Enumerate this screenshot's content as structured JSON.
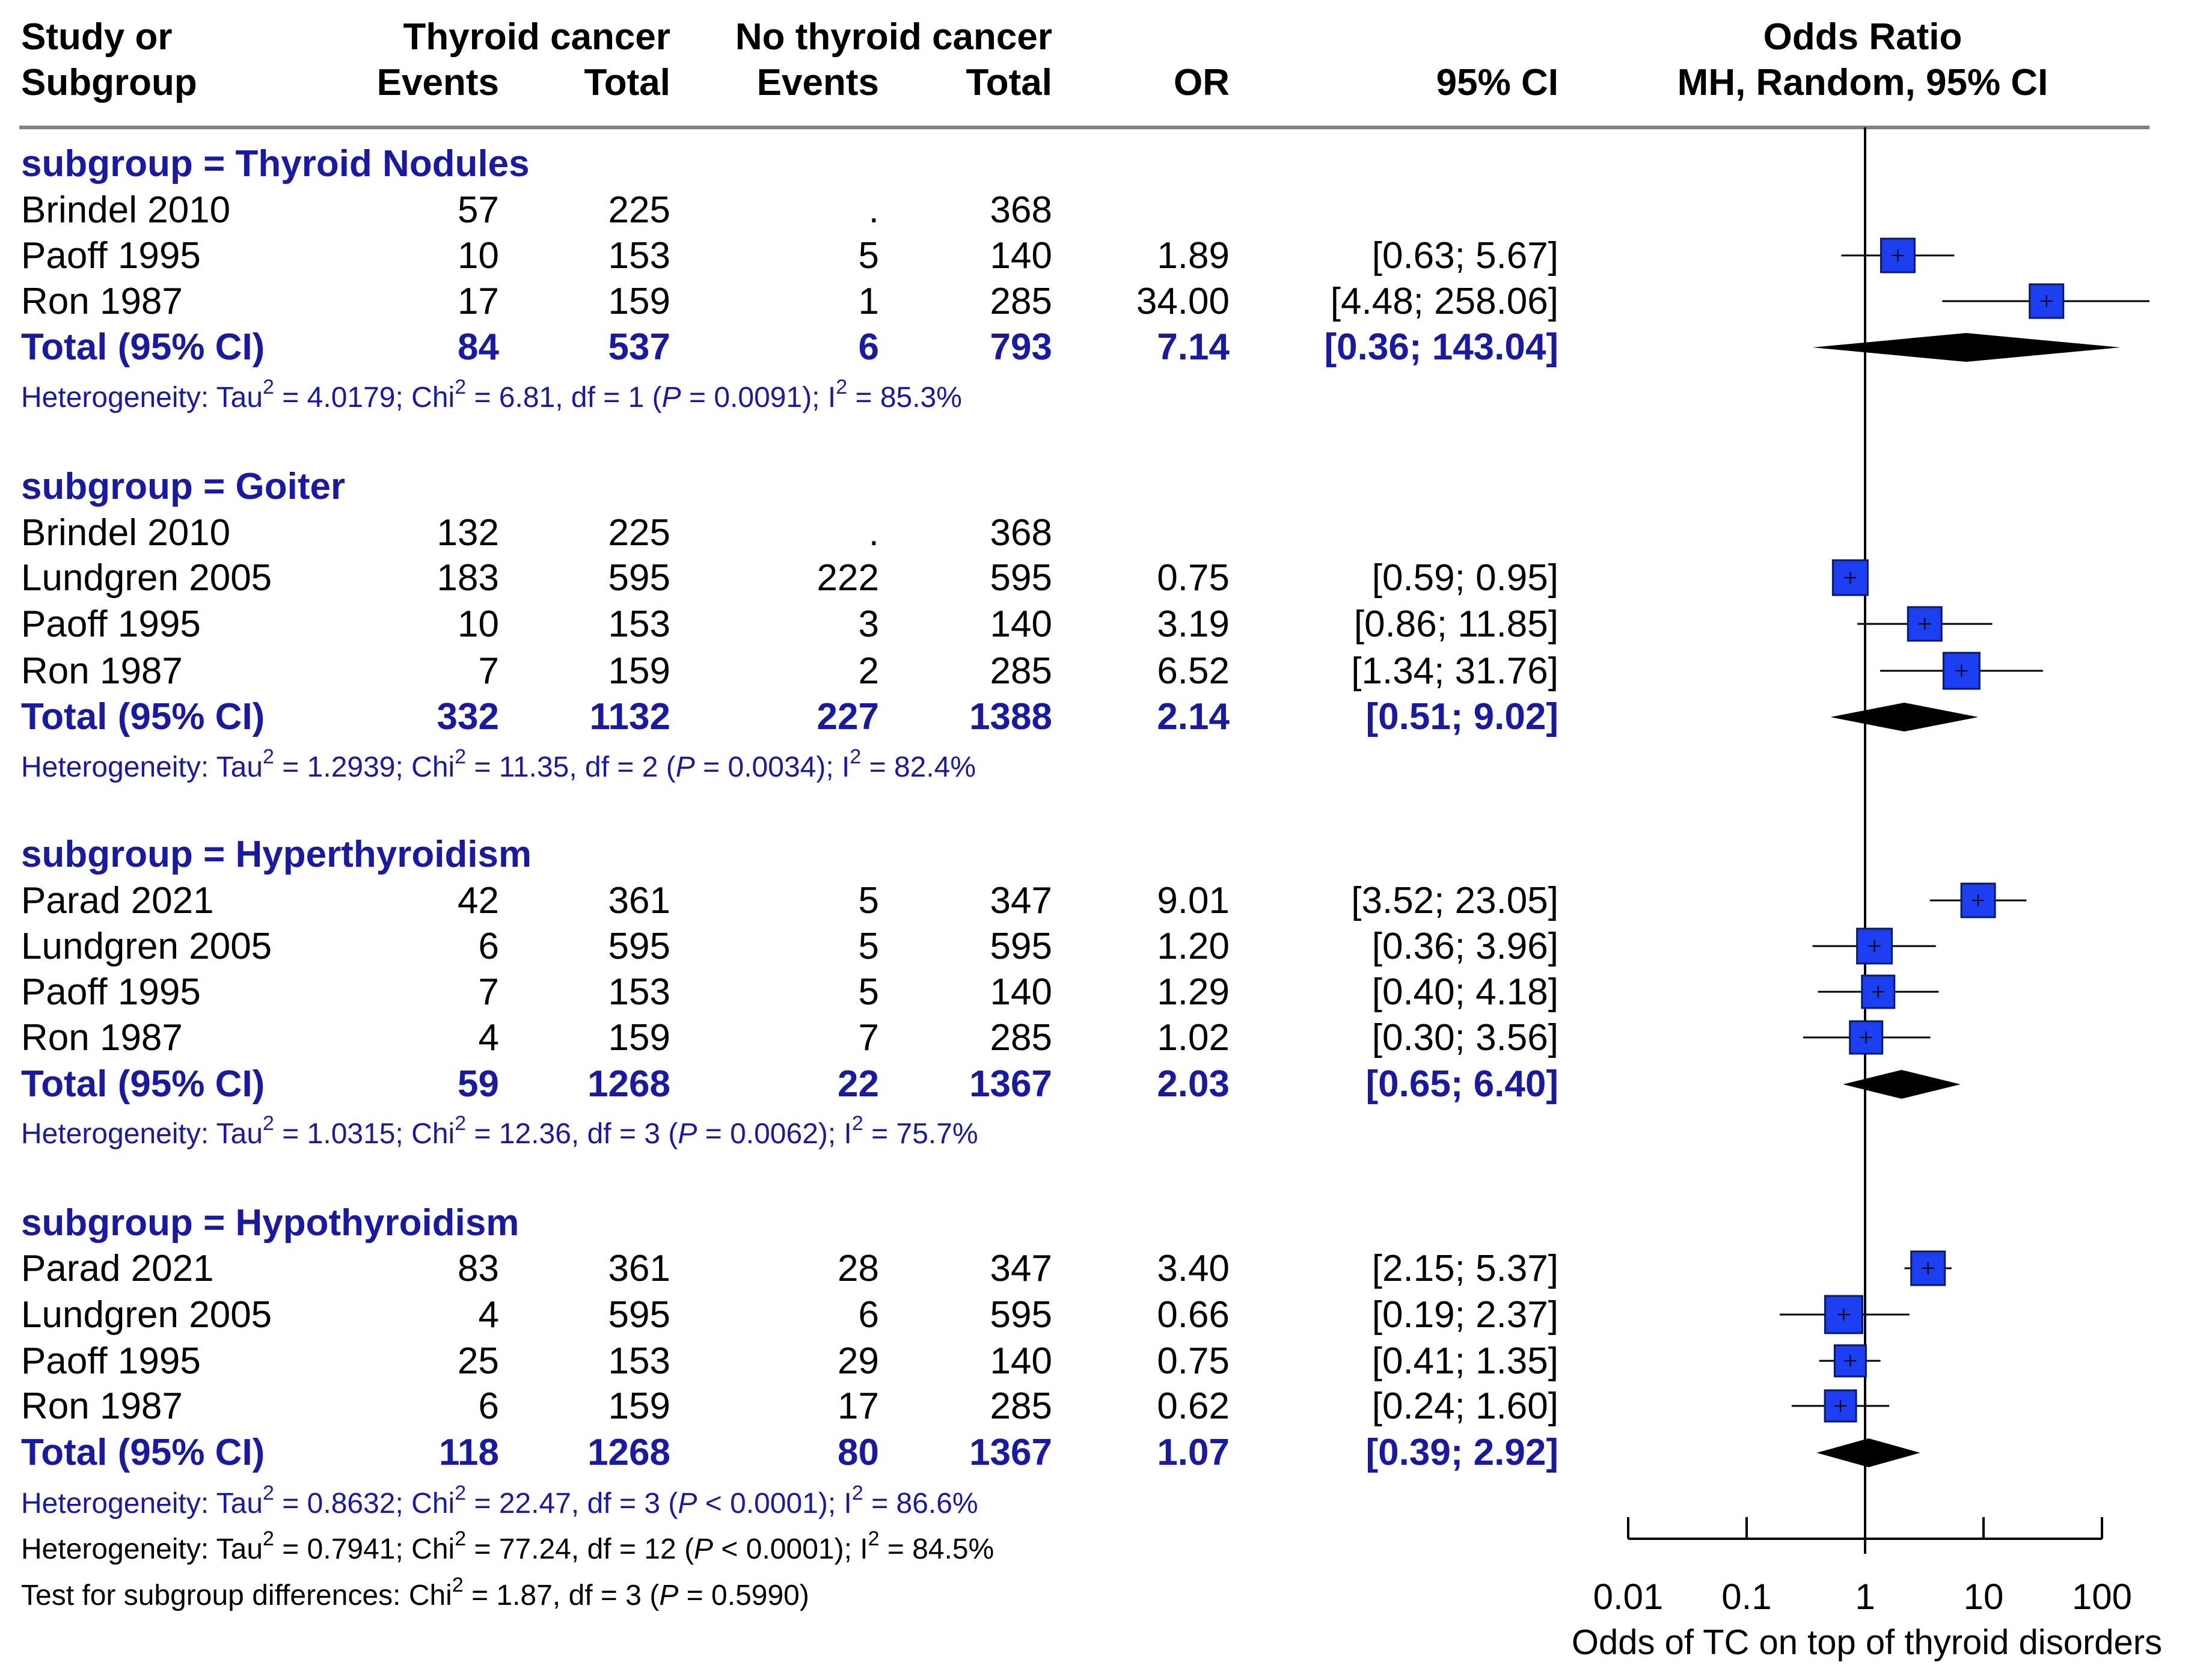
{
  "chart_data": {
    "type": "forest",
    "x_scale": "log10",
    "xlim": [
      0.01,
      100
    ],
    "reference_line": 1,
    "xlabel": "Odds of TC on top of thyroid disorders",
    "x_ticks": [
      "0.01",
      "0.1",
      "1",
      "10",
      "100"
    ],
    "headers": {
      "study_1": "Study or",
      "study_2": "Subgroup",
      "tc_group": "Thyroid cancer",
      "ntc_group": "No thyroid cancer",
      "events": "Events",
      "total": "Total",
      "or": "OR",
      "ci": "95% CI",
      "plot_1": "Odds Ratio",
      "plot_2": "MH, Random, 95% CI"
    },
    "subgroups": [
      {
        "label": "subgroup = Thyroid Nodules",
        "studies": [
          {
            "study": "Brindel 2010",
            "tc_events": "57",
            "tc_total": "225",
            "ntc_events": ".",
            "ntc_total": "368",
            "or_text": "",
            "ci_text": "",
            "or": null,
            "lo": null,
            "hi": null
          },
          {
            "study": "Paoff 1995",
            "tc_events": "10",
            "tc_total": "153",
            "ntc_events": "5",
            "ntc_total": "140",
            "or_text": "1.89",
            "ci_text": "[0.63;   5.67]",
            "or": 1.89,
            "lo": 0.63,
            "hi": 5.67
          },
          {
            "study": "Ron 1987",
            "tc_events": "17",
            "tc_total": "159",
            "ntc_events": "1",
            "ntc_total": "285",
            "or_text": "34.00",
            "ci_text": "[4.48; 258.06]",
            "or": 34.0,
            "lo": 4.48,
            "hi": 258.06
          }
        ],
        "total": {
          "label": "Total (95% CI)",
          "tc_events": "84",
          "tc_total": "537",
          "ntc_events": "6",
          "ntc_total": "793",
          "or_text": "7.14",
          "ci_text": "[0.36; 143.04]",
          "or": 7.14,
          "lo": 0.36,
          "hi": 143.04
        },
        "heterogeneity": {
          "prefix": "Heterogeneity: Tau",
          "mid1": " = 4.0179; Chi",
          "mid2": " = 6.81, df = 1 (",
          "p": "P",
          "mid3": " = 0.0091); I",
          "end": " = 85.3%"
        }
      },
      {
        "label": "subgroup = Goiter",
        "studies": [
          {
            "study": "Brindel 2010",
            "tc_events": "132",
            "tc_total": "225",
            "ntc_events": ".",
            "ntc_total": "368",
            "or_text": "",
            "ci_text": "",
            "or": null,
            "lo": null,
            "hi": null
          },
          {
            "study": "Lundgren 2005",
            "tc_events": "183",
            "tc_total": "595",
            "ntc_events": "222",
            "ntc_total": "595",
            "or_text": "0.75",
            "ci_text": "[0.59;   0.95]",
            "or": 0.75,
            "lo": 0.59,
            "hi": 0.95
          },
          {
            "study": "Paoff 1995",
            "tc_events": "10",
            "tc_total": "153",
            "ntc_events": "3",
            "ntc_total": "140",
            "or_text": "3.19",
            "ci_text": "[0.86;  11.85]",
            "or": 3.19,
            "lo": 0.86,
            "hi": 11.85
          },
          {
            "study": "Ron 1987",
            "tc_events": "7",
            "tc_total": "159",
            "ntc_events": "2",
            "ntc_total": "285",
            "or_text": "6.52",
            "ci_text": "[1.34;  31.76]",
            "or": 6.52,
            "lo": 1.34,
            "hi": 31.76
          }
        ],
        "total": {
          "label": "Total (95% CI)",
          "tc_events": "332",
          "tc_total": "1132",
          "ntc_events": "227",
          "ntc_total": "1388",
          "or_text": "2.14",
          "ci_text": "[0.51;   9.02]",
          "or": 2.14,
          "lo": 0.51,
          "hi": 9.02
        },
        "heterogeneity": {
          "prefix": "Heterogeneity: Tau",
          "mid1": " = 1.2939; Chi",
          "mid2": " = 11.35, df = 2 (",
          "p": "P",
          "mid3": " = 0.0034); I",
          "end": " = 82.4%"
        }
      },
      {
        "label": "subgroup = Hyperthyroidism",
        "studies": [
          {
            "study": "Parad 2021",
            "tc_events": "42",
            "tc_total": "361",
            "ntc_events": "5",
            "ntc_total": "347",
            "or_text": "9.01",
            "ci_text": "[3.52;  23.05]",
            "or": 9.01,
            "lo": 3.52,
            "hi": 23.05
          },
          {
            "study": "Lundgren 2005",
            "tc_events": "6",
            "tc_total": "595",
            "ntc_events": "5",
            "ntc_total": "595",
            "or_text": "1.20",
            "ci_text": "[0.36;   3.96]",
            "or": 1.2,
            "lo": 0.36,
            "hi": 3.96
          },
          {
            "study": "Paoff 1995",
            "tc_events": "7",
            "tc_total": "153",
            "ntc_events": "5",
            "ntc_total": "140",
            "or_text": "1.29",
            "ci_text": "[0.40;   4.18]",
            "or": 1.29,
            "lo": 0.4,
            "hi": 4.18
          },
          {
            "study": "Ron 1987",
            "tc_events": "4",
            "tc_total": "159",
            "ntc_events": "7",
            "ntc_total": "285",
            "or_text": "1.02",
            "ci_text": "[0.30;   3.56]",
            "or": 1.02,
            "lo": 0.3,
            "hi": 3.56
          }
        ],
        "total": {
          "label": "Total (95% CI)",
          "tc_events": "59",
          "tc_total": "1268",
          "ntc_events": "22",
          "ntc_total": "1367",
          "or_text": "2.03",
          "ci_text": "[0.65;   6.40]",
          "or": 2.03,
          "lo": 0.65,
          "hi": 6.4
        },
        "heterogeneity": {
          "prefix": "Heterogeneity: Tau",
          "mid1": " = 1.0315; Chi",
          "mid2": " = 12.36, df = 3 (",
          "p": "P",
          "mid3": " = 0.0062); I",
          "end": " = 75.7%"
        }
      },
      {
        "label": "subgroup = Hypothyroidism",
        "studies": [
          {
            "study": "Parad 2021",
            "tc_events": "83",
            "tc_total": "361",
            "ntc_events": "28",
            "ntc_total": "347",
            "or_text": "3.40",
            "ci_text": "[2.15;   5.37]",
            "or": 3.4,
            "lo": 2.15,
            "hi": 5.37
          },
          {
            "study": "Lundgren 2005",
            "tc_events": "4",
            "tc_total": "595",
            "ntc_events": "6",
            "ntc_total": "595",
            "or_text": "0.66",
            "ci_text": "[0.19;   2.37]",
            "or": 0.66,
            "lo": 0.19,
            "hi": 2.37
          },
          {
            "study": "Paoff 1995",
            "tc_events": "25",
            "tc_total": "153",
            "ntc_events": "29",
            "ntc_total": "140",
            "or_text": "0.75",
            "ci_text": "[0.41;   1.35]",
            "or": 0.75,
            "lo": 0.41,
            "hi": 1.35
          },
          {
            "study": "Ron 1987",
            "tc_events": "6",
            "tc_total": "159",
            "ntc_events": "17",
            "ntc_total": "285",
            "or_text": "0.62",
            "ci_text": "[0.24;   1.60]",
            "or": 0.62,
            "lo": 0.24,
            "hi": 1.6
          }
        ],
        "total": {
          "label": "Total (95% CI)",
          "tc_events": "118",
          "tc_total": "1268",
          "ntc_events": "80",
          "ntc_total": "1367",
          "or_text": "1.07",
          "ci_text": "[0.39;   2.92]",
          "or": 1.07,
          "lo": 0.39,
          "hi": 2.92
        },
        "heterogeneity": {
          "prefix": "Heterogeneity: Tau",
          "mid1": " = 0.8632; Chi",
          "mid2": " = 22.47, df = 3 (",
          "p": "P",
          "mid3": " < 0.0001); I",
          "end": " = 86.6%"
        }
      }
    ],
    "overall_heterogeneity": {
      "prefix": "Heterogeneity: Tau",
      "mid1": " = 0.7941; Chi",
      "mid2": " = 77.24, df = 12 (",
      "p": "P",
      "mid3": " < 0.0001); I",
      "end": " = 84.5%"
    },
    "subgroup_test": {
      "prefix": "Test for subgroup differences: Chi",
      "mid1": " = 1.87, df = 3 (",
      "p": "P",
      "end": " = 0.5990)"
    },
    "superscript": "2",
    "colors": {
      "square": "#1a3ef0",
      "square_edge": "#0a1a6a",
      "diamond": "#000000",
      "subgroup_text": "#1a1aa0",
      "rule": "#808080",
      "line": "#000000"
    }
  }
}
